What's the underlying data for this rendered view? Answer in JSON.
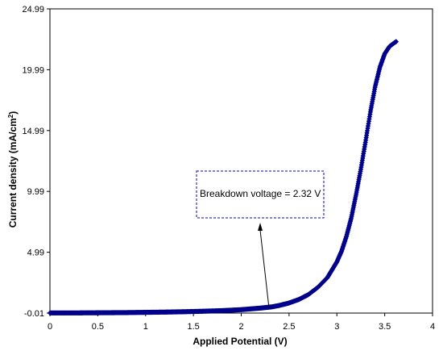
{
  "chart_data": {
    "type": "scatter",
    "xlabel": "Applied Potential (V)",
    "ylabel_main": "Current density (mA/cm",
    "ylabel_sup": "2",
    "ylabel_close": ")",
    "xlim": [
      0,
      4
    ],
    "ylim": [
      -0.01,
      24.99
    ],
    "x_ticks": [
      "0",
      "0.5",
      "1",
      "1.5",
      "2",
      "2.5",
      "3",
      "3.5",
      "4"
    ],
    "y_ticks": [
      "-0.01",
      "4.99",
      "9.99",
      "14.99",
      "19.99",
      "24.99"
    ],
    "grid": false,
    "legend": "none",
    "marker_color": "#00008B",
    "annotation": {
      "text": "Breakdown voltage = 2.32 V",
      "arrow_target": [
        2.32,
        0.15
      ]
    },
    "series": [
      {
        "x": [
          0,
          0.2,
          0.4,
          0.6,
          0.8,
          1.0,
          1.2,
          1.4,
          1.6,
          1.8,
          2.0,
          2.2,
          2.32,
          2.4,
          2.5,
          2.6,
          2.7,
          2.8,
          2.9,
          3.0,
          3.05,
          3.1,
          3.15,
          3.2,
          3.25,
          3.3,
          3.35,
          3.4,
          3.45,
          3.5,
          3.55,
          3.6,
          3.62
        ],
        "y": [
          0,
          0,
          0.01,
          0.02,
          0.03,
          0.05,
          0.07,
          0.1,
          0.14,
          0.19,
          0.27,
          0.4,
          0.5,
          0.62,
          0.82,
          1.1,
          1.5,
          2.1,
          2.9,
          4.2,
          5.1,
          6.3,
          7.8,
          9.7,
          11.8,
          14.1,
          16.5,
          18.6,
          20.2,
          21.3,
          21.9,
          22.2,
          22.3
        ]
      }
    ]
  }
}
